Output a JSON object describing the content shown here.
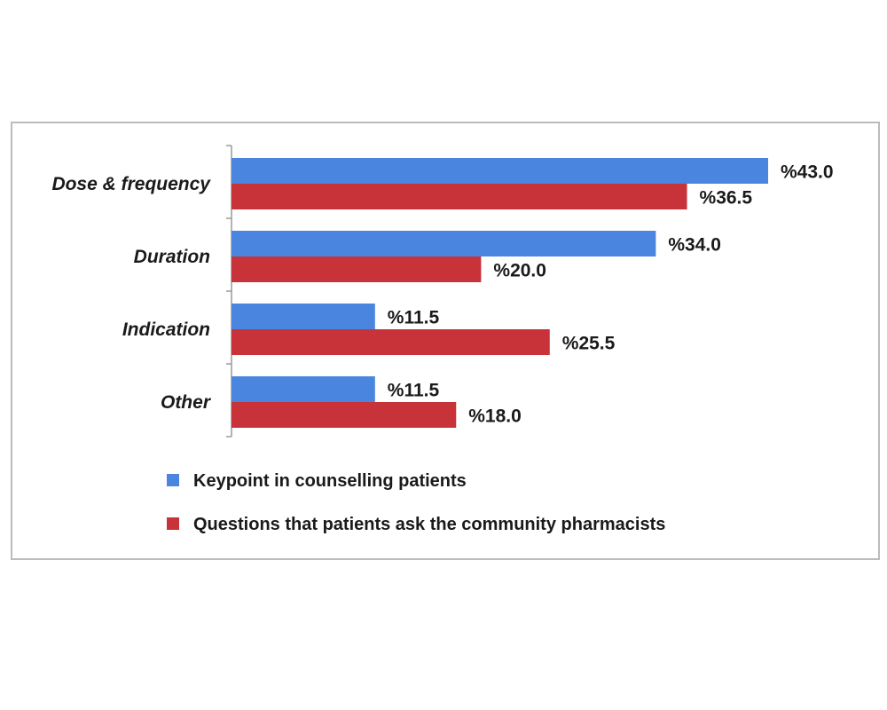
{
  "chart_data": {
    "type": "bar",
    "orientation": "horizontal",
    "categories": [
      "Dose & frequency",
      "Duration",
      "Indication",
      "Other"
    ],
    "series": [
      {
        "name": "Key point in counselling patients",
        "legend_label": "Keypoint in  counselling   patients",
        "color": "#4a86e0",
        "values": [
          43.0,
          34.0,
          11.5,
          11.5
        ],
        "labels": [
          "%43.0",
          "%34.0",
          "%11.5",
          "%11.5"
        ]
      },
      {
        "name": "Questions that patients ask the community pharmacists",
        "legend_label": "Questions that patients ask the community pharmacists",
        "color": "#c8333a",
        "values": [
          36.5,
          20.0,
          25.5,
          18.0
        ],
        "labels": [
          "%36.5",
          "%20.0",
          "%25.5",
          "%18.0"
        ]
      }
    ],
    "xlim": [
      0,
      43.0
    ],
    "grid": false,
    "legend_position": "bottom-left"
  }
}
